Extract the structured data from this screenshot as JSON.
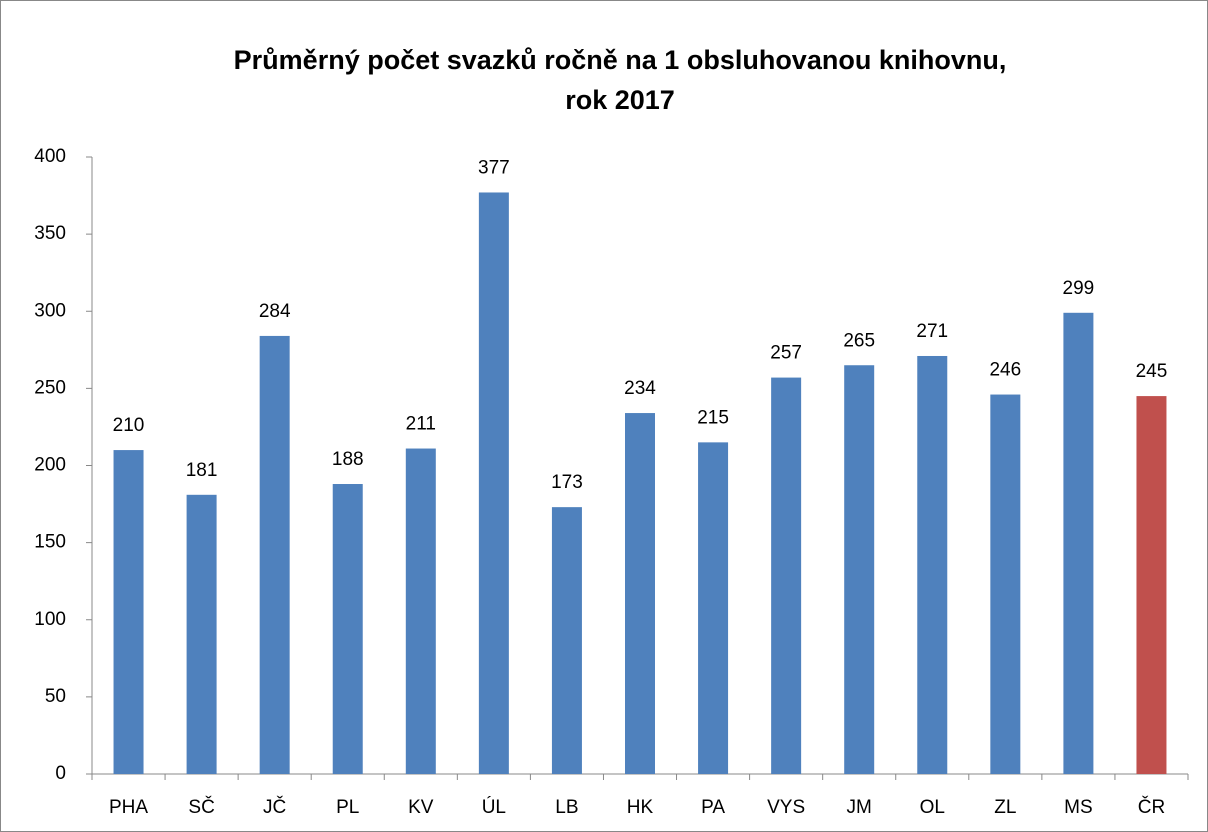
{
  "chart_data": {
    "type": "bar",
    "title": [
      "Průměrný počet svazků ročně na 1 obsluhovanou knihovnu,",
      "rok 2017"
    ],
    "categories": [
      "PHA",
      "SČ",
      "JČ",
      "PL",
      "KV",
      "ÚL",
      "LB",
      "HK",
      "PA",
      "VYS",
      "JM",
      "OL",
      "ZL",
      "MS",
      "ČR"
    ],
    "values": [
      210,
      181,
      284,
      188,
      211,
      377,
      173,
      234,
      215,
      257,
      265,
      271,
      246,
      299,
      245
    ],
    "colors": [
      "#4f81bd",
      "#4f81bd",
      "#4f81bd",
      "#4f81bd",
      "#4f81bd",
      "#4f81bd",
      "#4f81bd",
      "#4f81bd",
      "#4f81bd",
      "#4f81bd",
      "#4f81bd",
      "#4f81bd",
      "#4f81bd",
      "#4f81bd",
      "#c0504d"
    ],
    "ylim": [
      0,
      400
    ],
    "yticks": [
      0,
      50,
      100,
      150,
      200,
      250,
      300,
      350,
      400
    ],
    "grid": false
  }
}
